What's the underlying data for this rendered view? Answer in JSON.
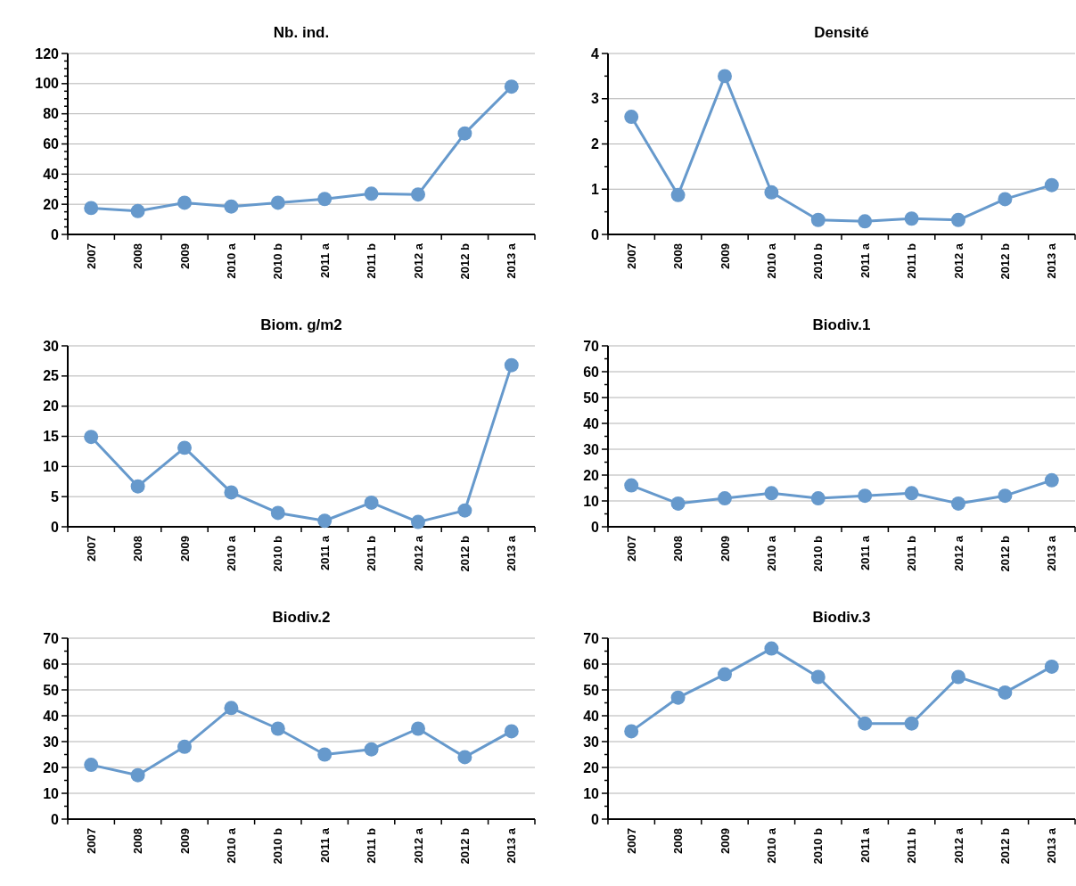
{
  "chart_data": [
    {
      "type": "line",
      "title": "Nb. ind.",
      "categories": [
        "2007",
        "2008",
        "2009",
        "2010 a",
        "2010 b",
        "2011 a",
        "2011 b",
        "2012 a",
        "2012 b",
        "2013 a"
      ],
      "values": [
        17.5,
        15.5,
        21,
        18.5,
        21,
        23.5,
        27,
        26.5,
        67,
        98
      ],
      "color": "#6699cc",
      "marker": "circle",
      "grid": "y",
      "ylim": [
        0,
        120
      ],
      "yticks": [
        0,
        {
          "value": 5,
          "label": null
        },
        {
          "value": 10,
          "label": null
        },
        {
          "value": 15,
          "label": null
        },
        20,
        {
          "value": 25,
          "label": null
        },
        {
          "value": 30,
          "label": null
        },
        {
          "value": 35,
          "label": null
        },
        40,
        {
          "value": 45,
          "label": null
        },
        {
          "value": 50,
          "label": null
        },
        {
          "value": 55,
          "label": null
        },
        60,
        {
          "value": 65,
          "label": null
        },
        {
          "value": 70,
          "label": null
        },
        {
          "value": 75,
          "label": null
        },
        80,
        {
          "value": 85,
          "label": null
        },
        {
          "value": 90,
          "label": null
        },
        {
          "value": 95,
          "label": null
        },
        100,
        {
          "value": 105,
          "label": null
        },
        {
          "value": 110,
          "label": null
        },
        {
          "value": 115,
          "label": null
        },
        120
      ]
    },
    {
      "type": "line",
      "title": "Densité",
      "categories": [
        "2007",
        "2008",
        "2009",
        "2010 a",
        "2010 b",
        "2011 a",
        "2011 b",
        "2012 a",
        "2012 b",
        "2013 a"
      ],
      "values": [
        2.6,
        0.87,
        3.5,
        0.93,
        0.32,
        0.29,
        0.35,
        0.32,
        0.78,
        1.09
      ],
      "color": "#6699cc",
      "marker": "circle",
      "grid": "y",
      "ylim": [
        0,
        4
      ],
      "yticks": [
        0,
        {
          "value": 0.5,
          "label": null
        },
        1,
        {
          "value": 1.5,
          "label": null
        },
        2,
        {
          "value": 2.5,
          "label": null
        },
        3,
        {
          "value": 3.5,
          "label": null
        },
        4
      ]
    },
    {
      "type": "line",
      "title": "Biom. g/m2",
      "categories": [
        "2007",
        "2008",
        "2009",
        "2010 a",
        "2010 b",
        "2011 a",
        "2011 b",
        "2012 a",
        "2012 b",
        "2013 a"
      ],
      "values": [
        14.9,
        6.7,
        13.1,
        5.7,
        2.3,
        1.0,
        4.0,
        0.8,
        2.7,
        26.8
      ],
      "color": "#6699cc",
      "marker": "circle",
      "grid": "y",
      "ylim": [
        0,
        30
      ],
      "yticks": [
        0,
        5,
        10,
        15,
        20,
        25,
        30
      ]
    },
    {
      "type": "line",
      "title": "Biodiv.1",
      "categories": [
        "2007",
        "2008",
        "2009",
        "2010 a",
        "2010 b",
        "2011 a",
        "2011 b",
        "2012 a",
        "2012 b",
        "2013 a"
      ],
      "values": [
        16,
        9,
        11,
        13,
        11,
        12,
        13,
        9,
        12,
        18
      ],
      "color": "#6699cc",
      "marker": "circle",
      "grid": "y",
      "ylim": [
        0,
        70
      ],
      "yticks": [
        0,
        {
          "value": 5,
          "label": null
        },
        10,
        {
          "value": 15,
          "label": null
        },
        20,
        {
          "value": 25,
          "label": null
        },
        30,
        {
          "value": 35,
          "label": null
        },
        40,
        {
          "value": 45,
          "label": null
        },
        50,
        {
          "value": 55,
          "label": null
        },
        60,
        {
          "value": 65,
          "label": null
        },
        70
      ]
    },
    {
      "type": "line",
      "title": "Biodiv.2",
      "categories": [
        "2007",
        "2008",
        "2009",
        "2010 a",
        "2010 b",
        "2011 a",
        "2011 b",
        "2012 a",
        "2012 b",
        "2013 a"
      ],
      "values": [
        21,
        17,
        28,
        43,
        35,
        25,
        27,
        35,
        24,
        34
      ],
      "color": "#6699cc",
      "marker": "circle",
      "grid": "y",
      "ylim": [
        0,
        70
      ],
      "yticks": [
        0,
        {
          "value": 5,
          "label": null
        },
        10,
        {
          "value": 15,
          "label": null
        },
        20,
        {
          "value": 25,
          "label": null
        },
        30,
        {
          "value": 35,
          "label": null
        },
        40,
        {
          "value": 45,
          "label": null
        },
        50,
        {
          "value": 55,
          "label": null
        },
        60,
        {
          "value": 65,
          "label": null
        },
        70
      ]
    },
    {
      "type": "line",
      "title": "Biodiv.3",
      "categories": [
        "2007",
        "2008",
        "2009",
        "2010 a",
        "2010 b",
        "2011 a",
        "2011 b",
        "2012 a",
        "2012 b",
        "2013 a"
      ],
      "values": [
        34,
        47,
        56,
        66,
        55,
        37,
        37,
        55,
        49,
        59
      ],
      "color": "#6699cc",
      "marker": "circle",
      "grid": "y",
      "ylim": [
        0,
        70
      ],
      "yticks": [
        0,
        {
          "value": 5,
          "label": null
        },
        10,
        {
          "value": 15,
          "label": null
        },
        20,
        {
          "value": 25,
          "label": null
        },
        30,
        {
          "value": 35,
          "label": null
        },
        40,
        {
          "value": 45,
          "label": null
        },
        50,
        {
          "value": 55,
          "label": null
        },
        60,
        {
          "value": 65,
          "label": null
        },
        70
      ]
    }
  ]
}
